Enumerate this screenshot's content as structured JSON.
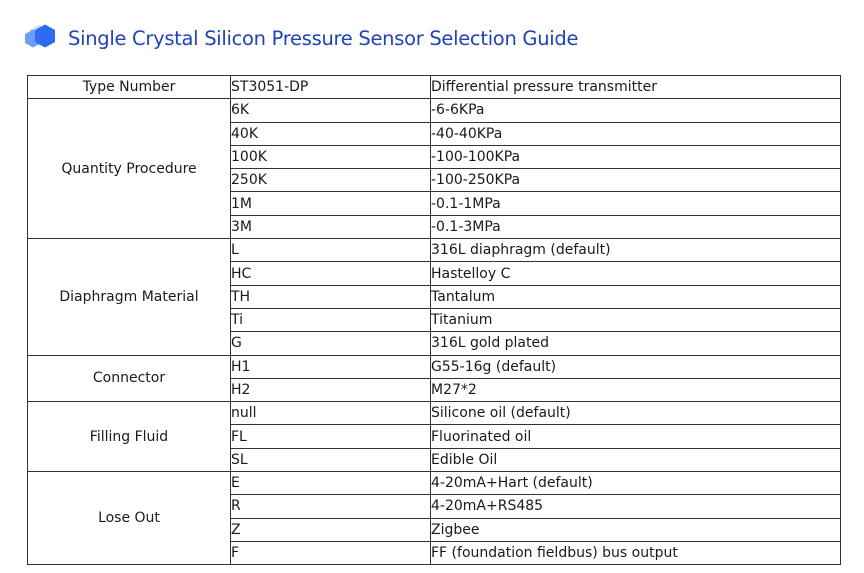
{
  "header": {
    "title": "Single Crystal Silicon Pressure Sensor Selection Guide",
    "icon": "cube-icon",
    "accent_color": "#1f43b8",
    "icon_colors": [
      "#2f6bf0",
      "#6f9cf6",
      "#c9d9fb"
    ]
  },
  "table": {
    "type_row": {
      "label": "Type  Number",
      "code": "ST3051-DP",
      "desc": "Differential pressure transmitter"
    },
    "groups": [
      {
        "label": "Quantity  Procedure",
        "rows": [
          {
            "code": "6K",
            "desc": "-6-6KPa"
          },
          {
            "code": "40K",
            "desc": "-40-40KPa"
          },
          {
            "code": "100K",
            "desc": "-100-100KPa"
          },
          {
            "code": "250K",
            "desc": "-100-250KPa"
          },
          {
            "code": "1M",
            "desc": "-0.1-1MPa"
          },
          {
            "code": "3M",
            "desc": "-0.1-3MPa"
          }
        ]
      },
      {
        "label": "Diaphragm Material",
        "rows": [
          {
            "code": "L",
            "desc": "316L diaphragm (default)"
          },
          {
            "code": "HC",
            "desc": "Hastelloy C"
          },
          {
            "code": "TH",
            "desc": "Tantalum"
          },
          {
            "code": "Ti",
            "desc": "Titanium"
          },
          {
            "code": "G",
            "desc": "316L gold plated"
          }
        ]
      },
      {
        "label": "Connector",
        "rows": [
          {
            "code": "H1",
            "desc": "G55-16g (default)"
          },
          {
            "code": "H2",
            "desc": "M27*2"
          }
        ]
      },
      {
        "label": "Filling Fluid",
        "rows": [
          {
            "code": "null",
            "desc": "Silicone oil (default)"
          },
          {
            "code": "FL",
            "desc": "Fluorinated oil"
          },
          {
            "code": "SL",
            "desc": "Edible Oil"
          }
        ]
      },
      {
        "label": "Lose   Out",
        "rows": [
          {
            "code": "E",
            "desc": "4-20mA+Hart (default)"
          },
          {
            "code": "R",
            "desc": "4-20mA+RS485"
          },
          {
            "code": "Z",
            "desc": "Zigbee"
          },
          {
            "code": "F",
            "desc": "FF (foundation fieldbus) bus output"
          }
        ]
      }
    ]
  }
}
